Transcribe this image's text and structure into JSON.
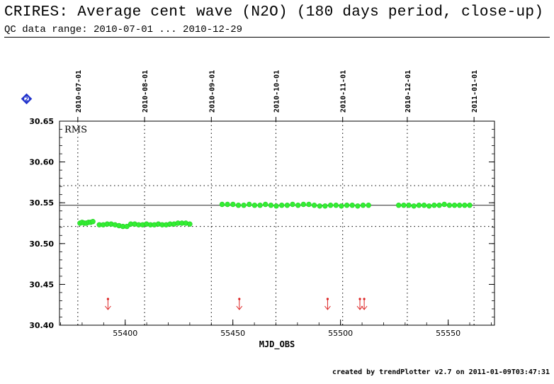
{
  "header": {
    "title": "CRIRES: Average cent wave (N2O) (180 days period, close-up)",
    "subtitle": "QC data range: 2010-07-01 ... 2010-12-29"
  },
  "footer": {
    "text": "created by trendPlotter v2.7 on 2011-01-09T03:47:31"
  },
  "colors": {
    "points": "#33ee33",
    "points_edge": "#22cc22",
    "arrows": "#dd2222",
    "badge": "#2233cc"
  },
  "icons": {
    "badge": "diamond-number-2-icon"
  },
  "chart_data": {
    "type": "scatter",
    "xlabel": "MJD_OBS",
    "ylabel": "",
    "panel_label": "RMS",
    "xlim": [
      55369.5,
      55571.5
    ],
    "ylim": [
      30.4,
      30.65
    ],
    "x_ticks": [
      55400,
      55450,
      55500,
      55550
    ],
    "y_ticks": [
      30.4,
      30.45,
      30.5,
      30.55,
      30.6,
      30.65
    ],
    "y_tick_labels": [
      "30.40",
      "30.45",
      "30.50",
      "30.55",
      "30.60",
      "30.65"
    ],
    "date_ticks": [
      {
        "label": "2010-07-01",
        "mjd": 55378
      },
      {
        "label": "2010-08-01",
        "mjd": 55409
      },
      {
        "label": "2010-09-01",
        "mjd": 55440
      },
      {
        "label": "2010-10-01",
        "mjd": 55470
      },
      {
        "label": "2010-11-01",
        "mjd": 55501
      },
      {
        "label": "2010-12-01",
        "mjd": 55531
      },
      {
        "label": "2011-01-01",
        "mjd": 55562
      }
    ],
    "reference_lines": {
      "mean": 30.547,
      "upper": 30.571,
      "lower": 30.521
    },
    "grid": "dotted vertical lines at date ticks",
    "series": [
      {
        "segments": [
          {
            "x_start": 55379,
            "x_end": 55385,
            "y": [
              30.525,
              30.526,
              30.525,
              30.525,
              30.526,
              30.526,
              30.527
            ]
          },
          {
            "x_start": 55388,
            "x_end": 55430,
            "y": [
              30.523,
              30.523,
              30.524,
              30.524,
              30.523,
              30.522,
              30.521,
              30.521,
              30.524,
              30.524,
              30.523,
              30.523,
              30.524,
              30.523,
              30.523,
              30.524,
              30.523,
              30.523,
              30.524,
              30.524,
              30.525,
              30.525,
              30.525,
              30.524
            ]
          },
          {
            "x_start": 55445,
            "x_end": 55513,
            "y": [
              30.548,
              30.548,
              30.548,
              30.547,
              30.547,
              30.548,
              30.547,
              30.547,
              30.548,
              30.547,
              30.546,
              30.547,
              30.547,
              30.548,
              30.547,
              30.548,
              30.548,
              30.547,
              30.546,
              30.546,
              30.547,
              30.547,
              30.546,
              30.547,
              30.547,
              30.546,
              30.547,
              30.547
            ]
          },
          {
            "x_start": 55527,
            "x_end": 55560,
            "y": [
              30.547,
              30.547,
              30.547,
              30.546,
              30.547,
              30.547,
              30.546,
              30.547,
              30.547,
              30.548,
              30.547,
              30.547,
              30.547,
              30.547,
              30.547
            ]
          }
        ]
      }
    ],
    "arrow_markers_mjd": [
      55392,
      55453,
      55494,
      55509,
      55511
    ]
  }
}
